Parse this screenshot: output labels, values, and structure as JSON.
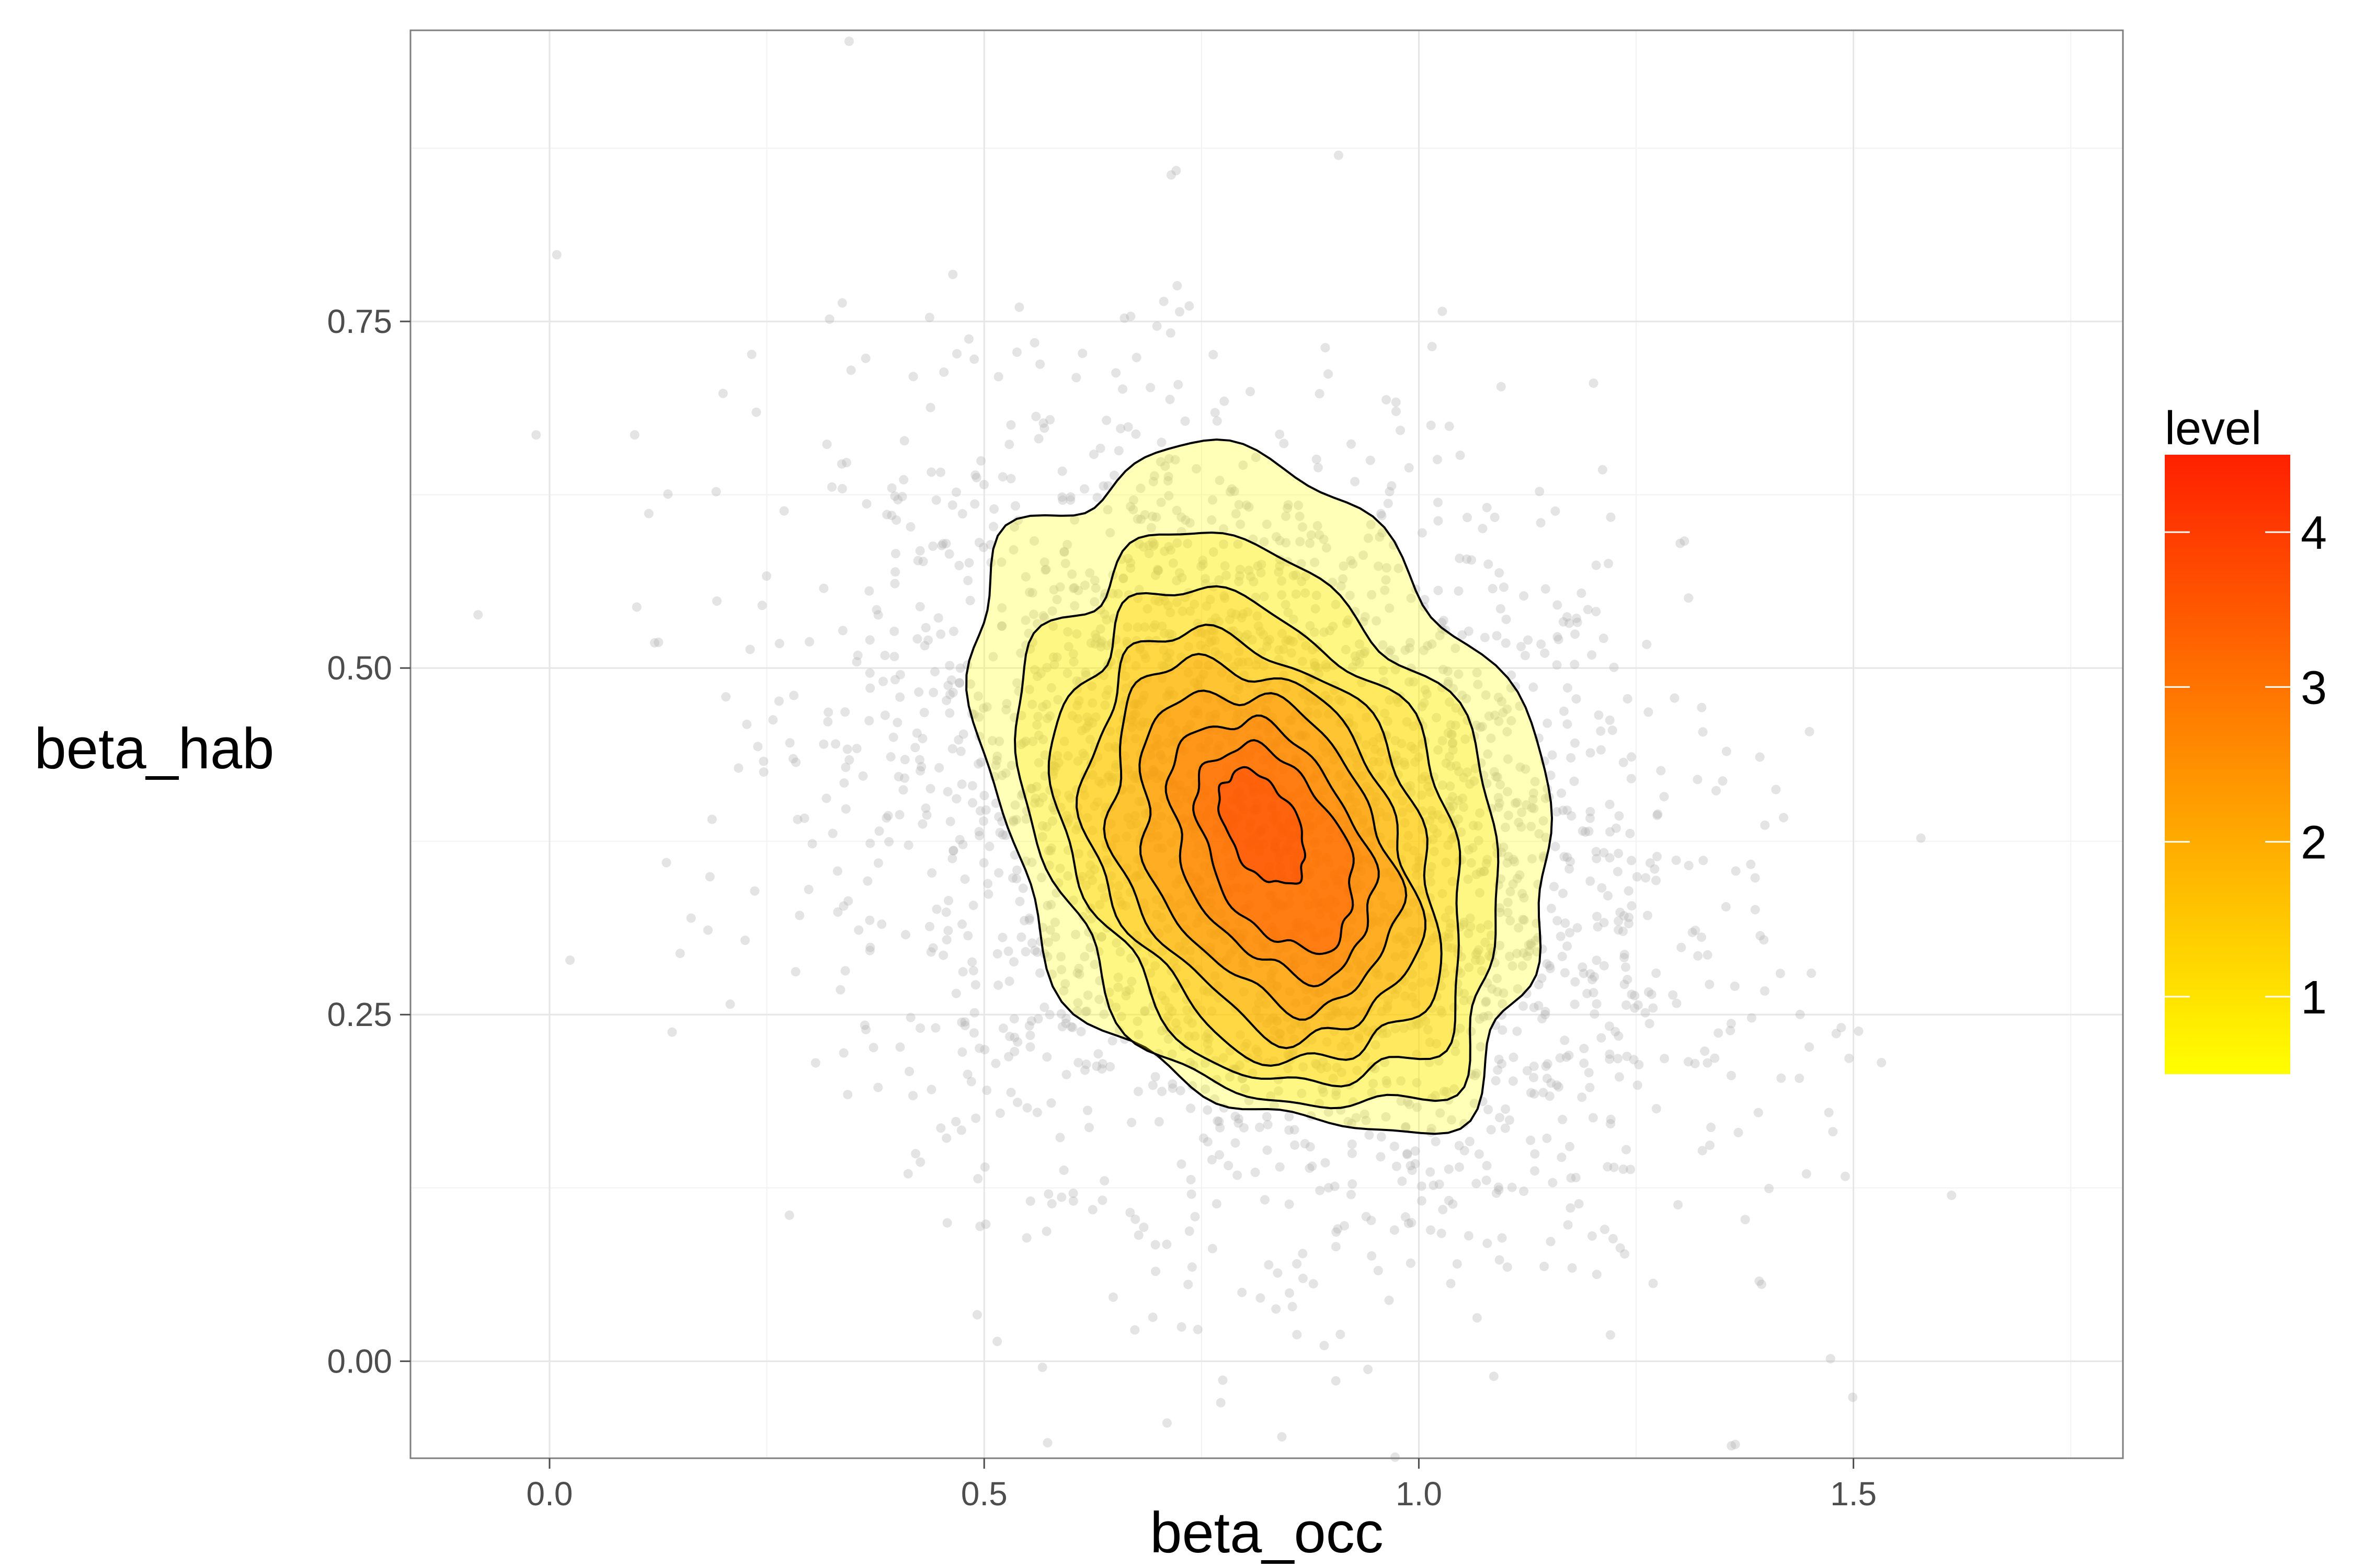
{
  "chart_data": {
    "type": "scatter",
    "xlabel": "beta_occ",
    "ylabel": "beta_hab",
    "xlim": [
      -0.16,
      1.81
    ],
    "ylim": [
      -0.07,
      0.96
    ],
    "x_ticks": [
      0.0,
      0.5,
      1.0,
      1.5
    ],
    "x_tick_labels": [
      "0.0",
      "0.5",
      "1.0",
      "1.5"
    ],
    "y_ticks": [
      0.0,
      0.25,
      0.5,
      0.75
    ],
    "y_tick_labels": [
      "0.00",
      "0.25",
      "0.50",
      "0.75"
    ],
    "grid": true,
    "legend": {
      "title": "level",
      "position": "right",
      "range": [
        0.5,
        4.5
      ],
      "ticks": [
        1,
        2,
        3,
        4
      ],
      "tick_labels": [
        "1",
        "2",
        "3",
        "4"
      ],
      "colors": [
        "#FFFF00",
        "#FF2000"
      ]
    },
    "points": {
      "count": 3000,
      "center": [
        0.82,
        0.38
      ],
      "sd": [
        0.24,
        0.145
      ],
      "rho": -0.25,
      "color": "#b3b3b3",
      "approx": true
    },
    "contours": [
      {
        "level": 0.5,
        "center": [
          0.82,
          0.41
        ],
        "r": [
          0.3,
          0.26
        ]
      },
      {
        "level": 1.0,
        "center": [
          0.82,
          0.385
        ],
        "r": [
          0.25,
          0.22
        ]
      },
      {
        "level": 1.5,
        "center": [
          0.82,
          0.375
        ],
        "r": [
          0.21,
          0.19
        ]
      },
      {
        "level": 2.0,
        "center": [
          0.82,
          0.37
        ],
        "r": [
          0.18,
          0.165
        ]
      },
      {
        "level": 2.5,
        "center": [
          0.82,
          0.37
        ],
        "r": [
          0.155,
          0.145
        ]
      },
      {
        "level": 3.0,
        "center": [
          0.825,
          0.37
        ],
        "r": [
          0.13,
          0.122
        ]
      },
      {
        "level": 3.5,
        "center": [
          0.83,
          0.37
        ],
        "r": [
          0.1,
          0.1
        ]
      },
      {
        "level": 4.0,
        "center": [
          0.835,
          0.37
        ],
        "r": [
          0.075,
          0.08
        ]
      },
      {
        "level": 4.5,
        "center": [
          0.82,
          0.385
        ],
        "r": [
          0.04,
          0.045
        ]
      }
    ]
  }
}
